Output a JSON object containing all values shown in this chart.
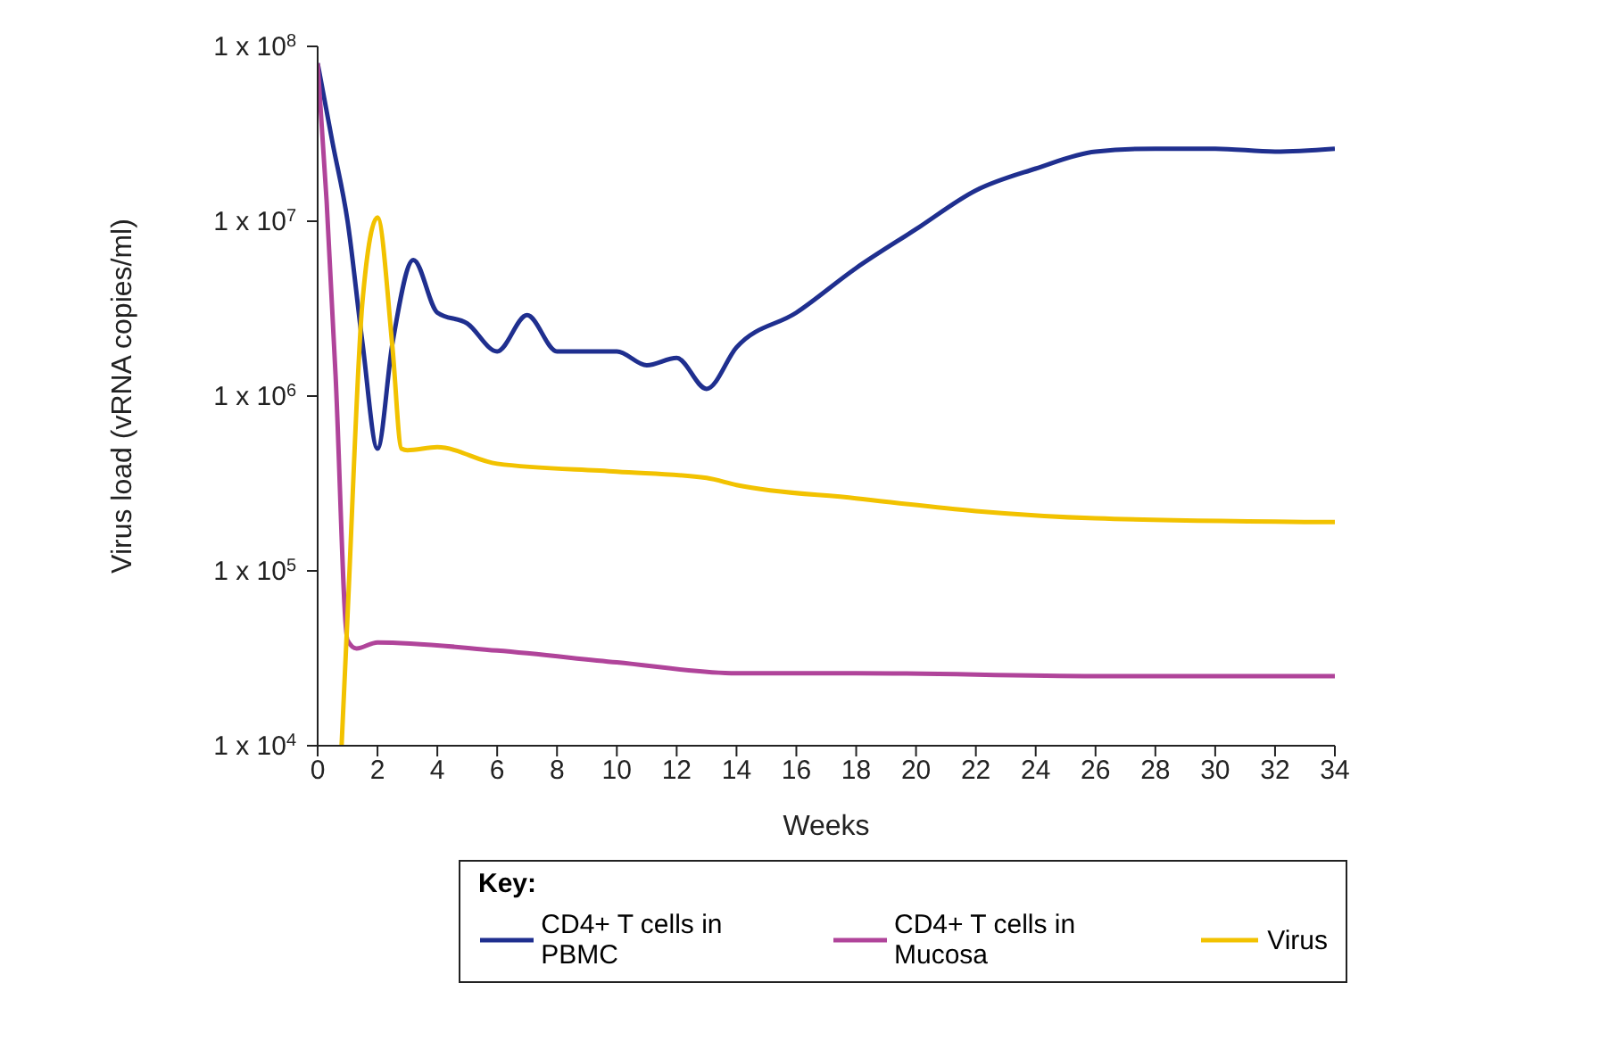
{
  "chart_data": {
    "type": "line",
    "xlabel": "Weeks",
    "ylabel": "Virus load (vRNA copies/ml)",
    "legend_title": "Key:",
    "legend": "bottom",
    "log": true,
    "grid": false,
    "marker": "none",
    "line_style": "solid",
    "xlim": [
      0,
      34
    ],
    "xticks": [
      0,
      2,
      4,
      6,
      8,
      10,
      12,
      14,
      16,
      18,
      20,
      22,
      24,
      26,
      28,
      30,
      32,
      34
    ],
    "ylim": [
      10000,
      100000000
    ],
    "yticks": [
      {
        "value": 10000,
        "label": "1 x 10$^{4}$"
      },
      {
        "value": 100000,
        "label": "1 x 10$^{5}$"
      },
      {
        "value": 1000000,
        "label": "1 x 10$^{6}$"
      },
      {
        "value": 10000000,
        "label": "1 x 10$^{7}$"
      },
      {
        "value": 100000000,
        "label": "1 x 10$^{8}$"
      }
    ],
    "series": [
      {
        "name": "CD4+ T cells in PBMC",
        "color": "#1f2f8f",
        "x": [
          0,
          0.5,
          1,
          1.5,
          2,
          2.5,
          3.2,
          4,
          5,
          6,
          7,
          8,
          10,
          11,
          12,
          13,
          14,
          16,
          18,
          20,
          22,
          24,
          26,
          28,
          30,
          32,
          34
        ],
        "values": [
          80000000,
          28000000,
          10000000,
          2000000,
          500000,
          2000000,
          6000000,
          3000000,
          2600000,
          1800000,
          2900000,
          1800000,
          1800000,
          1500000,
          1650000,
          1100000,
          1900000,
          3000000,
          5400000,
          9000000,
          15000000,
          20000000,
          25000000,
          26000000,
          26000000,
          25000000,
          26000000
        ]
      },
      {
        "name": "CD4+ T cells in Mucosa",
        "color": "#b0449a",
        "x": [
          0,
          0.3,
          0.6,
          1,
          1.3,
          2,
          6,
          10,
          14,
          18,
          26,
          34
        ],
        "values": [
          80000000,
          13000000,
          1300000,
          40000,
          36000,
          39000,
          35000,
          30000,
          26000,
          26000,
          25000,
          25000
        ]
      },
      {
        "name": "Virus",
        "color": "#f2c200",
        "x": [
          0.8,
          1,
          1.5,
          2,
          2.5,
          2.8,
          3,
          4,
          6,
          10,
          13,
          14,
          18,
          22,
          26,
          34
        ],
        "values": [
          10000,
          56000,
          3500000,
          10500000,
          1900000,
          500000,
          490000,
          510000,
          410000,
          370000,
          340000,
          310000,
          260000,
          220000,
          200000,
          190000
        ]
      }
    ]
  }
}
